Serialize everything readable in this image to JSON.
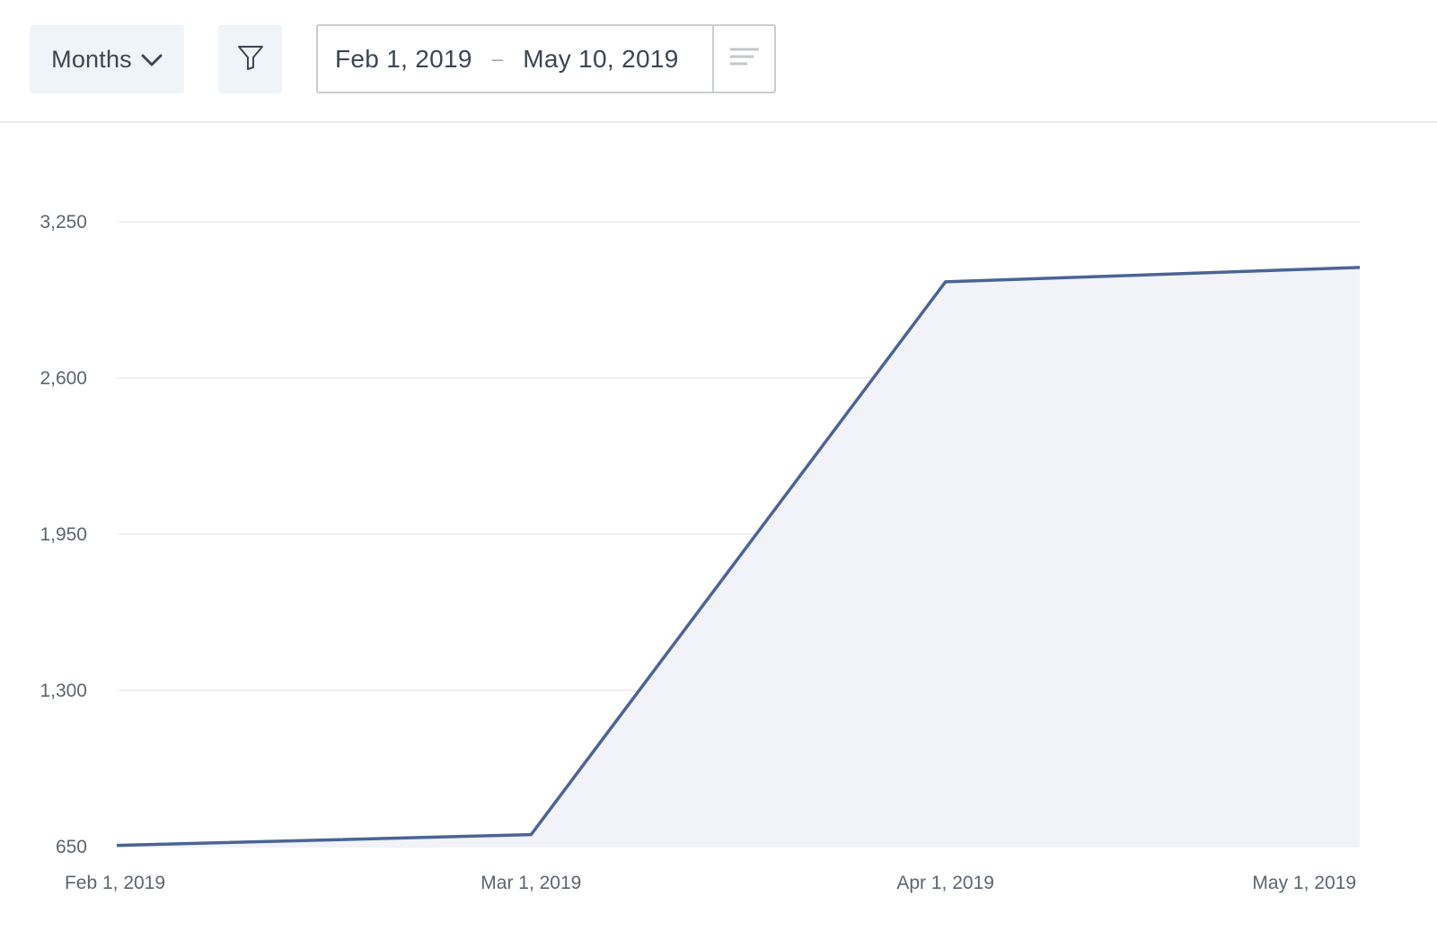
{
  "toolbar": {
    "granularity": "Months",
    "date_start": "Feb 1, 2019",
    "date_separator": "–",
    "date_end": "May 10, 2019",
    "icons": {
      "granularity_chevron": "chevron-down-icon",
      "filter": "filter-icon",
      "menu": "menu-lines-icon"
    }
  },
  "chart_data": {
    "type": "area",
    "x": [
      "Feb 1, 2019",
      "Mar 1, 2019",
      "Apr 1, 2019",
      "May 1, 2019"
    ],
    "series": [
      {
        "values": [
          655,
          700,
          3000,
          3060
        ]
      }
    ],
    "ylim": [
      650,
      3250
    ],
    "yticks": [
      650,
      1300,
      1950,
      2600,
      3250
    ],
    "ytick_labels": [
      "650",
      "1,300",
      "1,950",
      "2,600",
      "3,250"
    ],
    "grid": true,
    "colors": {
      "line": "#4a6494",
      "fill": "#f1f3f8",
      "grid": "#eef0f3"
    }
  }
}
